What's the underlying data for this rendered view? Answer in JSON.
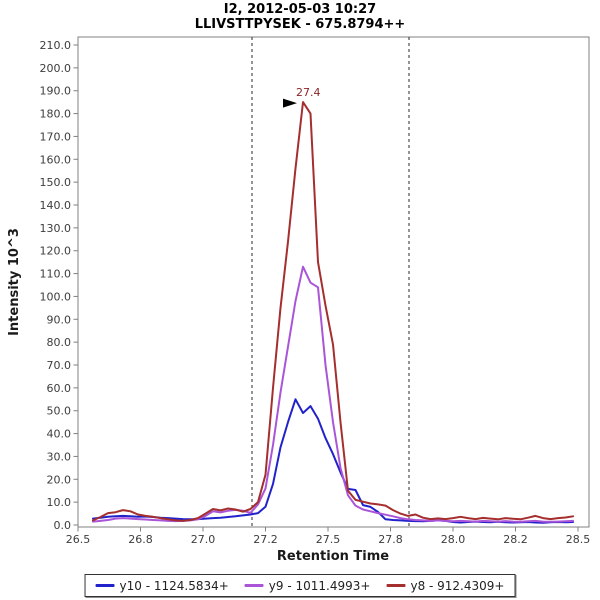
{
  "window": {
    "title_line1": "I2, 2012-05-03 10:27",
    "title_line2": "LLIVSTTPYSEK - 675.8794++"
  },
  "chart_data": {
    "type": "line",
    "title": "I2, 2012-05-03 10:27",
    "subtitle": "LLIVSTTPYSEK - 675.8794++",
    "xlabel": "Retention Time",
    "ylabel": "Intensity 10^3",
    "xlim": [
      26.5,
      28.5
    ],
    "ylim": [
      0,
      210
    ],
    "grid": "off",
    "legend_position": "bottom",
    "frame_color": "#808080",
    "tick_label_color": "#3d3d3d",
    "boundary_lines_x": [
      27.196,
      27.824
    ],
    "annotation": {
      "label": "27.4",
      "x": 27.4,
      "y": 185,
      "color": "#8b2525",
      "marker": "black-right-triangle"
    },
    "x_ticks": [
      {
        "v": 26.5,
        "l": "26.5"
      },
      {
        "v": 26.75,
        "l": "26.8"
      },
      {
        "v": 27.0,
        "l": "27.0"
      },
      {
        "v": 27.25,
        "l": "27.2"
      },
      {
        "v": 27.5,
        "l": "27.5"
      },
      {
        "v": 27.75,
        "l": "27.8"
      },
      {
        "v": 28.0,
        "l": "28.0"
      },
      {
        "v": 28.25,
        "l": "28.2"
      },
      {
        "v": 28.5,
        "l": "28.5"
      }
    ],
    "y_ticks": [
      {
        "v": 0,
        "l": "0.0"
      },
      {
        "v": 10,
        "l": "10.0"
      },
      {
        "v": 20,
        "l": "20.0"
      },
      {
        "v": 30,
        "l": "30.0"
      },
      {
        "v": 40,
        "l": "40.0"
      },
      {
        "v": 50,
        "l": "50.0"
      },
      {
        "v": 60,
        "l": "60.0"
      },
      {
        "v": 70,
        "l": "70.0"
      },
      {
        "v": 80,
        "l": "80.0"
      },
      {
        "v": 90,
        "l": "90.0"
      },
      {
        "v": 100,
        "l": "100.0"
      },
      {
        "v": 110,
        "l": "110.0"
      },
      {
        "v": 120,
        "l": "120.0"
      },
      {
        "v": 130,
        "l": "130.0"
      },
      {
        "v": 140,
        "l": "140.0"
      },
      {
        "v": 150,
        "l": "150.0"
      },
      {
        "v": 160,
        "l": "160.0"
      },
      {
        "v": 170,
        "l": "170.0"
      },
      {
        "v": 180,
        "l": "180.0"
      },
      {
        "v": 190,
        "l": "190.0"
      },
      {
        "v": 200,
        "l": "200.0"
      },
      {
        "v": 210,
        "l": "210.0"
      }
    ],
    "x": [
      26.56,
      26.59,
      26.62,
      26.65,
      26.68,
      26.71,
      26.74,
      26.77,
      26.8,
      26.83,
      26.86,
      26.89,
      26.92,
      26.95,
      26.98,
      27.01,
      27.04,
      27.07,
      27.1,
      27.13,
      27.16,
      27.19,
      27.22,
      27.25,
      27.28,
      27.31,
      27.34,
      27.37,
      27.4,
      27.43,
      27.46,
      27.49,
      27.52,
      27.55,
      27.58,
      27.61,
      27.64,
      27.67,
      27.7,
      27.73,
      27.76,
      27.79,
      27.82,
      27.85,
      27.88,
      27.91,
      27.94,
      27.97,
      28.0,
      28.03,
      28.06,
      28.09,
      28.12,
      28.15,
      28.18,
      28.21,
      28.24,
      28.27,
      28.3,
      28.33,
      28.36,
      28.39,
      28.42,
      28.45,
      28.48
    ],
    "series": [
      {
        "name": "y10 - 1124.5834+",
        "color": "#2222cc",
        "values": [
          2.8,
          3.2,
          3.6,
          3.8,
          4.0,
          3.8,
          3.6,
          3.7,
          3.5,
          3.2,
          3.0,
          2.8,
          2.6,
          2.5,
          2.6,
          2.8,
          3.0,
          3.2,
          3.5,
          3.8,
          4.2,
          4.6,
          5.2,
          8.0,
          18,
          34,
          45,
          55,
          49,
          52,
          46.5,
          38,
          31,
          23,
          15.8,
          15.3,
          8.7,
          7.9,
          5.7,
          2.5,
          2.2,
          2.0,
          1.8,
          1.7,
          1.6,
          1.8,
          2.0,
          1.8,
          1.3,
          1.1,
          1.3,
          1.5,
          1.3,
          1.2,
          1.4,
          1.2,
          1.1,
          1.2,
          1.3,
          1.1,
          1.0,
          1.2,
          1.3,
          1.2,
          1.3
        ]
      },
      {
        "name": "y9 - 1011.4993+",
        "color": "#aa55d8",
        "values": [
          1.5,
          1.8,
          2.2,
          2.8,
          3.0,
          2.8,
          2.6,
          2.4,
          2.2,
          2.0,
          1.8,
          1.7,
          1.8,
          2.0,
          2.5,
          4.0,
          6.0,
          5.5,
          6.2,
          6.6,
          6.2,
          5.3,
          9,
          16,
          35,
          58,
          78,
          98,
          113,
          106,
          104,
          70,
          45,
          25,
          13,
          8.5,
          6.8,
          6.0,
          5.2,
          4.5,
          3.8,
          3.0,
          2.5,
          2.2,
          2.0,
          1.8,
          2.0,
          1.8,
          1.6,
          1.8,
          1.6,
          1.5,
          1.8,
          1.6,
          1.5,
          1.7,
          1.5,
          1.4,
          1.6,
          1.8,
          1.5,
          1.4,
          1.5,
          1.6,
          1.8
        ]
      },
      {
        "name": "y8 - 912.4309+",
        "color": "#a52e2e",
        "values": [
          2.0,
          3.5,
          5.2,
          5.6,
          6.5,
          6.0,
          4.6,
          4.0,
          3.6,
          3.0,
          2.5,
          2.0,
          1.8,
          2.2,
          3.0,
          5.0,
          7.0,
          6.4,
          7.2,
          6.8,
          5.8,
          7.0,
          10,
          22,
          60,
          95,
          124,
          156,
          185,
          180,
          115,
          96,
          79,
          45,
          15,
          11,
          10.2,
          9.4,
          9.0,
          8.5,
          6.5,
          5.0,
          4.0,
          4.6,
          3.2,
          2.6,
          2.9,
          2.6,
          3.0,
          3.6,
          3.0,
          2.6,
          3.1,
          2.8,
          2.5,
          3.0,
          2.7,
          2.5,
          3.2,
          4.0,
          3.0,
          2.6,
          3.0,
          3.3,
          3.8
        ]
      }
    ]
  }
}
